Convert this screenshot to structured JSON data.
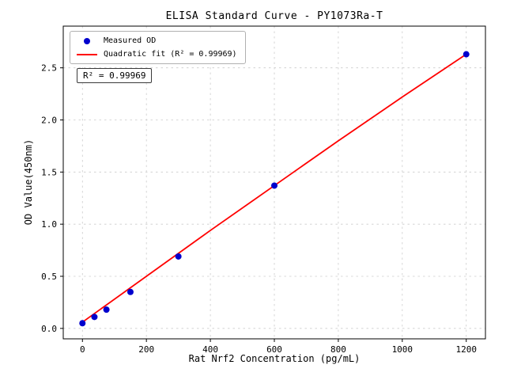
{
  "chart_data": {
    "type": "scatter",
    "title": "ELISA Standard Curve - PY1073Ra-T",
    "xlabel": "Rat Nrf2 Concentration (pg/mL)",
    "ylabel": "OD Value(450nm)",
    "xlim": [
      -60,
      1260
    ],
    "ylim": [
      -0.1,
      2.9
    ],
    "x_ticks": [
      0,
      200,
      400,
      600,
      800,
      1000,
      1200
    ],
    "x_tick_labels": [
      "0",
      "200",
      "400",
      "600",
      "800",
      "1000",
      "1200"
    ],
    "y_ticks": [
      0.0,
      0.5,
      1.0,
      1.5,
      2.0,
      2.5
    ],
    "y_tick_labels": [
      "0.0",
      "0.5",
      "1.0",
      "1.5",
      "2.0",
      "2.5"
    ],
    "grid": true,
    "grid_color": "#cccccc",
    "legend_position": "upper left",
    "annotation": "R² = 0.99969",
    "series": [
      {
        "name": "Measured OD",
        "type": "scatter",
        "color": "#0000cd",
        "x": [
          0,
          37.5,
          75,
          150,
          300,
          600,
          1200
        ],
        "y": [
          0.05,
          0.11,
          0.18,
          0.35,
          0.69,
          1.37,
          2.63
        ]
      },
      {
        "name": "Quadratic fit (R² = 0.99969)",
        "type": "line",
        "color": "#ff0000",
        "x": [
          0,
          200,
          400,
          600,
          800,
          1000,
          1200
        ],
        "y": [
          0.06,
          0.5,
          0.94,
          1.37,
          1.8,
          2.22,
          2.63
        ]
      }
    ]
  }
}
